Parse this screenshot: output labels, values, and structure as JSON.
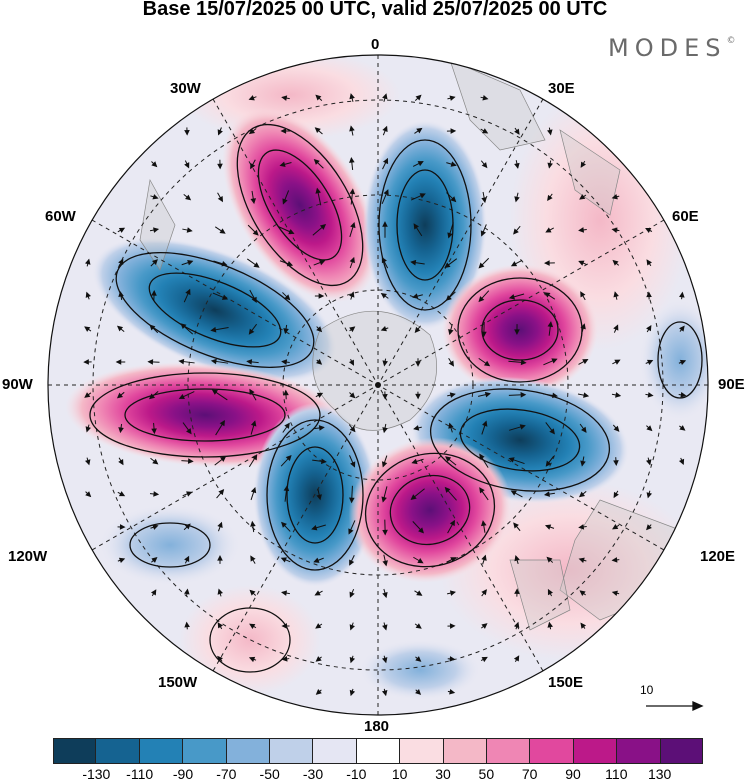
{
  "title": "Base 15/07/2025 00 UTC, valid 25/07/2025 00 UTC",
  "brand": {
    "name": "MODES",
    "mark": "©"
  },
  "map": {
    "projection": "polar-stereographic",
    "hemisphere": "south",
    "longitude_labels": {
      "top": "0",
      "top_left": "30W",
      "top_right": "30E",
      "upper_left": "60W",
      "upper_right": "60E",
      "left": "90W",
      "right": "90E",
      "lower_left": "120W",
      "lower_right": "120E",
      "bottom_left": "150W",
      "bottom_right": "150E",
      "bottom": "180"
    },
    "wind_vector": {
      "reference_value": "10",
      "icon": "reference-arrow-icon"
    }
  },
  "colorbar": {
    "colors": [
      "#0e3d5a",
      "#156391",
      "#2381b5",
      "#4899c8",
      "#83b1db",
      "#bfd0e9",
      "#e5e6f3",
      "#ffffff",
      "#fadde2",
      "#f4b8c7",
      "#ef86b4",
      "#e1489e",
      "#bc1989",
      "#891187",
      "#5c0f77"
    ],
    "ticks": [
      "-130",
      "-110",
      "-90",
      "-70",
      "-50",
      "-30",
      "-10",
      "10",
      "30",
      "50",
      "70",
      "90",
      "110",
      "130"
    ]
  }
}
